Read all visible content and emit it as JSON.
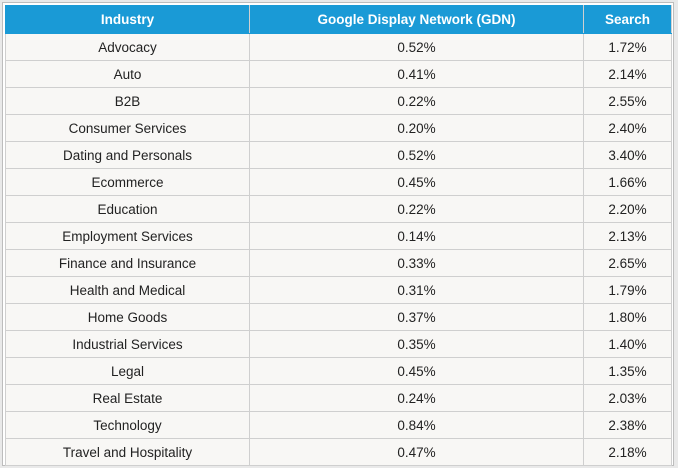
{
  "table": {
    "headers": [
      "Industry",
      "Google Display Network (GDN)",
      "Search"
    ],
    "rows": [
      [
        "Advocacy",
        "0.52%",
        "1.72%"
      ],
      [
        "Auto",
        "0.41%",
        "2.14%"
      ],
      [
        "B2B",
        "0.22%",
        "2.55%"
      ],
      [
        "Consumer Services",
        "0.20%",
        "2.40%"
      ],
      [
        "Dating and Personals",
        "0.52%",
        "3.40%"
      ],
      [
        "Ecommerce",
        "0.45%",
        "1.66%"
      ],
      [
        "Education",
        "0.22%",
        "2.20%"
      ],
      [
        "Employment Services",
        "0.14%",
        "2.13%"
      ],
      [
        "Finance and Insurance",
        "0.33%",
        "2.65%"
      ],
      [
        "Health and Medical",
        "0.31%",
        "1.79%"
      ],
      [
        "Home Goods",
        "0.37%",
        "1.80%"
      ],
      [
        "Industrial Services",
        "0.35%",
        "1.40%"
      ],
      [
        "Legal",
        "0.45%",
        "1.35%"
      ],
      [
        "Real Estate",
        "0.24%",
        "2.03%"
      ],
      [
        "Technology",
        "0.84%",
        "2.38%"
      ],
      [
        "Travel and Hospitality",
        "0.47%",
        "2.18%"
      ]
    ]
  }
}
